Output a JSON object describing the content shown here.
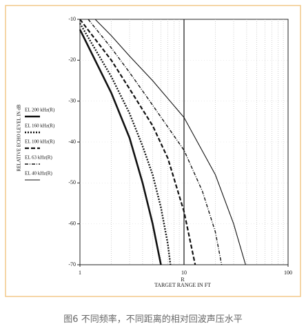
{
  "chart_data": {
    "type": "line",
    "log_x": true,
    "grid": true,
    "x_label": "TARGET RANGE IN FT",
    "x_symbol": "R",
    "y_label": "RELATIVE ECHO LEVEL IN dB",
    "xlim": [
      1,
      100
    ],
    "xticks": [
      1,
      10,
      100
    ],
    "ylim": [
      -70,
      -10
    ],
    "yticks": [
      -10,
      -20,
      -30,
      -40,
      -50,
      -60,
      -70
    ],
    "series": [
      {
        "name": "EL 200 kHz(R)",
        "color": "#111111",
        "width": 2.6,
        "dash": "none",
        "x": [
          1,
          2,
          3,
          4,
          5,
          6
        ],
        "values": [
          -12.5,
          -28,
          -39,
          -50,
          -60,
          -70
        ]
      },
      {
        "name": "EL 160 kHz(R)",
        "color": "#111111",
        "width": 2.4,
        "dash": "2 2",
        "x": [
          1,
          2,
          3,
          4,
          5,
          6,
          7,
          7.4
        ],
        "values": [
          -11,
          -24,
          -33,
          -41,
          -48,
          -56,
          -65,
          -70
        ]
      },
      {
        "name": "EL 100 kHz(R)",
        "color": "#111111",
        "width": 2.2,
        "dash": "6 3",
        "x": [
          1,
          2,
          3,
          5,
          7,
          10,
          12.8
        ],
        "values": [
          -10,
          -20,
          -27,
          -36,
          -44,
          -57,
          -70
        ]
      },
      {
        "name": "EL 63 kHz(R)",
        "color": "#111111",
        "width": 1.4,
        "dash": "5 2 1 2",
        "x": [
          1.2,
          2,
          3,
          5,
          10,
          15,
          20,
          23
        ],
        "values": [
          -10,
          -17,
          -23,
          -31,
          -42,
          -52,
          -62,
          -70
        ]
      },
      {
        "name": "EL 40 kHz(R)",
        "color": "#111111",
        "width": 1.1,
        "dash": "none",
        "x": [
          1.4,
          2,
          3,
          5,
          10,
          20,
          30,
          39
        ],
        "values": [
          -10,
          -14,
          -19,
          -25,
          -34,
          -48,
          -60,
          -70
        ]
      }
    ]
  },
  "caption": "图6 不同频率，不同距离的相对回波声压水平"
}
